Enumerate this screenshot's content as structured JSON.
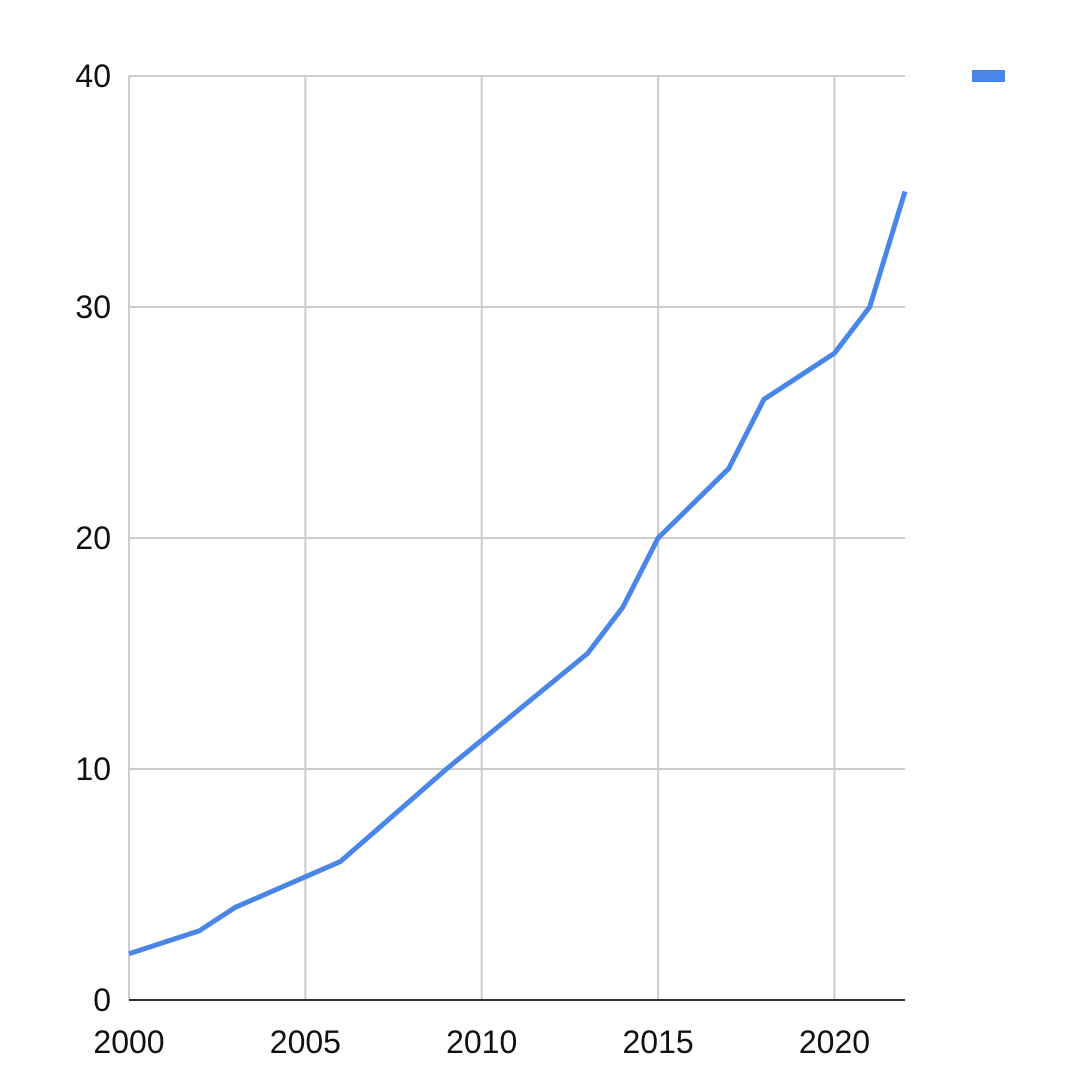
{
  "chart_data": {
    "type": "line",
    "title": "",
    "xlabel": "",
    "ylabel": "",
    "xlim": [
      2000,
      2022
    ],
    "ylim": [
      0,
      40
    ],
    "x_ticks": [
      2000,
      2005,
      2010,
      2015,
      2020
    ],
    "y_ticks": [
      0,
      10,
      20,
      30,
      40
    ],
    "grid": true,
    "legend": "top-right",
    "series": [
      {
        "color": "#4a86e8",
        "x": [
          2000,
          2002,
          2003,
          2006,
          2009,
          2013,
          2014,
          2015,
          2017,
          2018,
          2020,
          2021,
          2022
        ],
        "y": [
          2,
          3,
          4,
          6,
          10,
          15,
          17,
          20,
          23,
          26,
          28,
          30,
          35
        ]
      }
    ]
  }
}
